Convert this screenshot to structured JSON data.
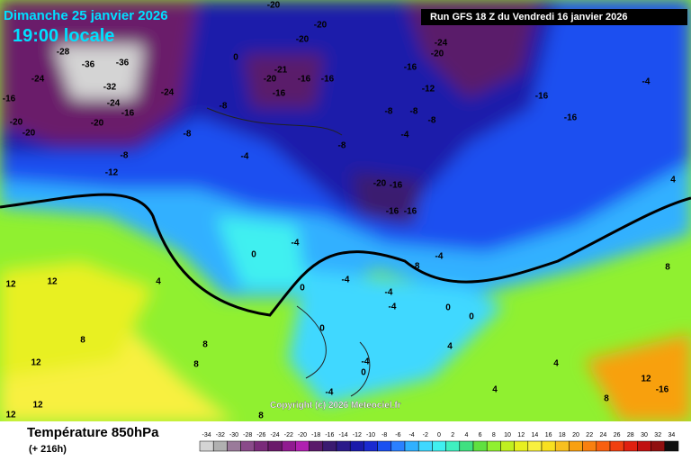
{
  "header": {
    "date": "Dimanche 25 janvier 2026",
    "time": "19:00 locale",
    "run": "Run GFS 18 Z du Vendredi 16 janvier 2026"
  },
  "copyright": "Copyright (c) 2026 Meteociel.fr",
  "footer": {
    "title": "Température 850hPa",
    "lead": "(+ 216h)"
  },
  "legend": {
    "values": [
      -34,
      -32,
      -30,
      -28,
      -26,
      -24,
      -22,
      -20,
      -18,
      -16,
      -14,
      -12,
      -10,
      -8,
      -6,
      -4,
      -2,
      0,
      2,
      4,
      6,
      8,
      10,
      12,
      14,
      16,
      18,
      20,
      22,
      24,
      26,
      28,
      30,
      32,
      34
    ],
    "colors": [
      "#d4d4d4",
      "#b0b0b0",
      "#9a7a9a",
      "#8a4a8a",
      "#7a2a7a",
      "#6a1a6a",
      "#901a90",
      "#b020b0",
      "#5a1a6a",
      "#3a1a70",
      "#2a1a8a",
      "#1a1aaa",
      "#1a2ad0",
      "#1a50f0",
      "#2a80ff",
      "#30b0ff",
      "#40d8ff",
      "#40f0f0",
      "#40f0c0",
      "#40e080",
      "#60e040",
      "#90f030",
      "#c0f020",
      "#e8f020",
      "#f8f040",
      "#f8e020",
      "#f8c020",
      "#f8a010",
      "#f88010",
      "#f86010",
      "#f04010",
      "#e02010",
      "#c01010",
      "#901010",
      "#101010"
    ]
  },
  "map_labels": [
    "-28",
    "-36",
    "-36",
    "-32",
    "-24",
    "-24",
    "-16",
    "-20",
    "-20",
    "-20",
    "-24",
    "-16",
    "-12",
    "-8",
    "-8",
    "-4",
    "0",
    "-8",
    "-20",
    "-21",
    "-16",
    "-16",
    "-16",
    "-20",
    "-20",
    "-20",
    "-8",
    "-8",
    "-4",
    "-8",
    "-8",
    "-12",
    "-16",
    "-24",
    "-20",
    "-16",
    "-16",
    "-20",
    "-16",
    "-16",
    "-16",
    "-4",
    "0",
    "0",
    "-4",
    "-8",
    "-4",
    "-4",
    "-4",
    "0",
    "0",
    "0",
    "-4",
    "0",
    "4",
    "4",
    "-4",
    "12",
    "12",
    "8",
    "12",
    "12",
    "12",
    "8",
    "8",
    "4",
    "8",
    "4",
    "8",
    "4",
    "-4",
    "-16",
    "12",
    "8"
  ]
}
